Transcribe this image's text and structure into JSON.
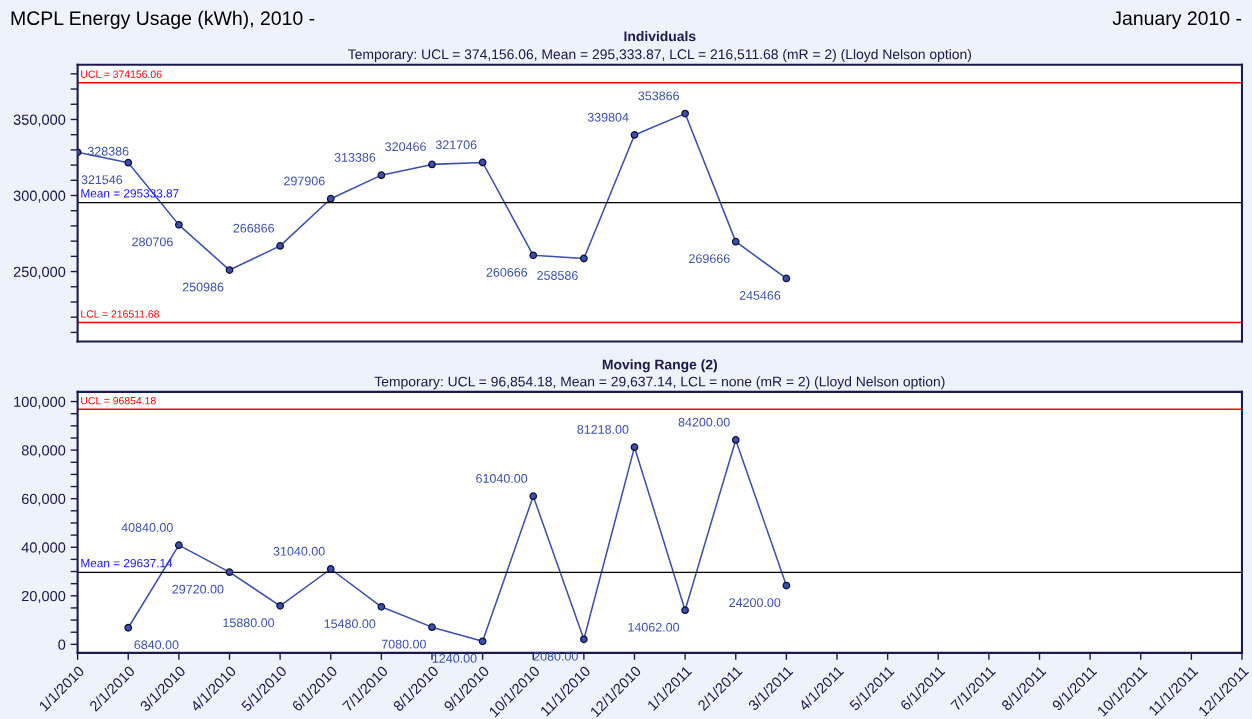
{
  "chart_data": [
    {
      "type": "line",
      "title": "Individuals",
      "subtitle": "Temporary: UCL = 374,156.06, Mean = 295,333.87, LCL = 216,511.68 (mR = 2) (Lloyd Nelson option)",
      "annotations": [
        "MCPL Energy Usage (kWh), 2010 -",
        "January 2010 -"
      ],
      "categories": [
        null,
        null,
        null,
        null,
        null,
        null,
        null,
        null,
        null,
        null,
        null,
        null,
        null,
        null,
        null,
        null,
        null,
        null,
        null,
        null,
        null,
        null,
        null,
        null
      ],
      "series": [
        {
          "color": "#3a4fb0",
          "values": [
            328386,
            321546,
            280706,
            250986,
            266866,
            297906,
            313386,
            320466,
            321706,
            260666,
            258586,
            339804,
            353866,
            269666,
            245466,
            null,
            null,
            null,
            null,
            null,
            null,
            null,
            null,
            null
          ]
        }
      ],
      "data_labels": true,
      "marker": "circle",
      "line_style": "solid",
      "grid": false,
      "tick_labels": "y",
      "ylim": [
        204000,
        386000
      ],
      "yticks": [
        {
          "value": 210000,
          "label": null
        },
        {
          "value": 220000,
          "label": null
        },
        {
          "value": 230000,
          "label": null
        },
        {
          "value": 240000,
          "label": null
        },
        {
          "value": 250000,
          "label": "250,000"
        },
        {
          "value": 260000,
          "label": null
        },
        {
          "value": 270000,
          "label": null
        },
        {
          "value": 280000,
          "label": null
        },
        {
          "value": 290000,
          "label": null
        },
        {
          "value": 300000,
          "label": "300,000"
        },
        {
          "value": 310000,
          "label": null
        },
        {
          "value": 320000,
          "label": null
        },
        {
          "value": 330000,
          "label": null
        },
        {
          "value": 340000,
          "label": null
        },
        {
          "value": 350000,
          "label": "350,000"
        },
        {
          "value": 360000,
          "label": null
        },
        {
          "value": 370000,
          "label": null
        },
        {
          "value": 380000,
          "label": null
        }
      ],
      "ref_lines": [
        {
          "axis": "y",
          "value": 374156.06,
          "label": "UCL = 374156.06",
          "color": "#ff0000"
        },
        {
          "axis": "y",
          "value": 295333.87,
          "label": "Mean = 295333.87",
          "color": "#000000"
        },
        {
          "axis": "y",
          "value": 216511.68,
          "label": "LCL = 216511.68",
          "color": "#ff0000"
        }
      ]
    },
    {
      "type": "line",
      "title": "Moving Range (2)",
      "subtitle": "Temporary: UCL = 96,854.18, Mean = 29,637.14, LCL = none (mR = 2) (Lloyd Nelson option)",
      "categories": [
        "1/1/2010",
        "2/1/2010",
        "3/1/2010",
        "4/1/2010",
        "5/1/2010",
        "6/1/2010",
        "7/1/2010",
        "8/1/2010",
        "9/1/2010",
        "10/1/2010",
        "11/1/2010",
        "12/1/2010",
        "1/1/2011",
        "2/1/2011",
        "3/1/2011",
        "4/1/2011",
        "5/1/2011",
        "6/1/2011",
        "7/1/2011",
        "8/1/2011",
        "9/1/2011",
        "10/1/2011",
        "11/1/2011",
        "12/1/2011"
      ],
      "series": [
        {
          "color": "#3a4fb0",
          "values": [
            null,
            6840,
            40840,
            29720,
            15880,
            31040,
            15480,
            7080,
            1240,
            61040,
            2080,
            81218,
            14062,
            84200,
            24200,
            null,
            null,
            null,
            null,
            null,
            null,
            null,
            null,
            null
          ],
          "value_labels": [
            null,
            "6840.00",
            "40840.00",
            "29720.00",
            "15880.00",
            "31040.00",
            "15480.00",
            "7080.00",
            "1240.00",
            "61040.00",
            "2080.00",
            "81218.00",
            "14062.00",
            "84200.00",
            "24200.00",
            null,
            null,
            null,
            null,
            null,
            null,
            null,
            null,
            null
          ]
        }
      ],
      "marker": "circle",
      "line_style": "solid",
      "grid": false,
      "ylim": [
        -3500,
        104000
      ],
      "yticks": [
        0,
        {
          "value": 5000,
          "label": null
        },
        {
          "value": 10000,
          "label": null
        },
        {
          "value": 15000,
          "label": null
        },
        {
          "value": 20000,
          "label": "20,000"
        },
        {
          "value": 25000,
          "label": null
        },
        {
          "value": 30000,
          "label": null
        },
        {
          "value": 35000,
          "label": null
        },
        {
          "value": 40000,
          "label": "40,000"
        },
        {
          "value": 45000,
          "label": null
        },
        {
          "value": 50000,
          "label": null
        },
        {
          "value": 55000,
          "label": null
        },
        {
          "value": 60000,
          "label": "60,000"
        },
        {
          "value": 65000,
          "label": null
        },
        {
          "value": 70000,
          "label": null
        },
        {
          "value": 75000,
          "label": null
        },
        {
          "value": 80000,
          "label": "80,000"
        },
        {
          "value": 85000,
          "label": null
        },
        {
          "value": 90000,
          "label": null
        },
        {
          "value": 95000,
          "label": null
        },
        {
          "value": 100000,
          "label": "100,000"
        }
      ],
      "ref_lines": [
        {
          "axis": "y",
          "value": 96854.18,
          "label": "UCL = 96854.18",
          "color": "#ff0000"
        },
        {
          "axis": "y",
          "value": 29637.14,
          "label": "Mean = 29637.14",
          "color": "#000000"
        }
      ]
    }
  ]
}
